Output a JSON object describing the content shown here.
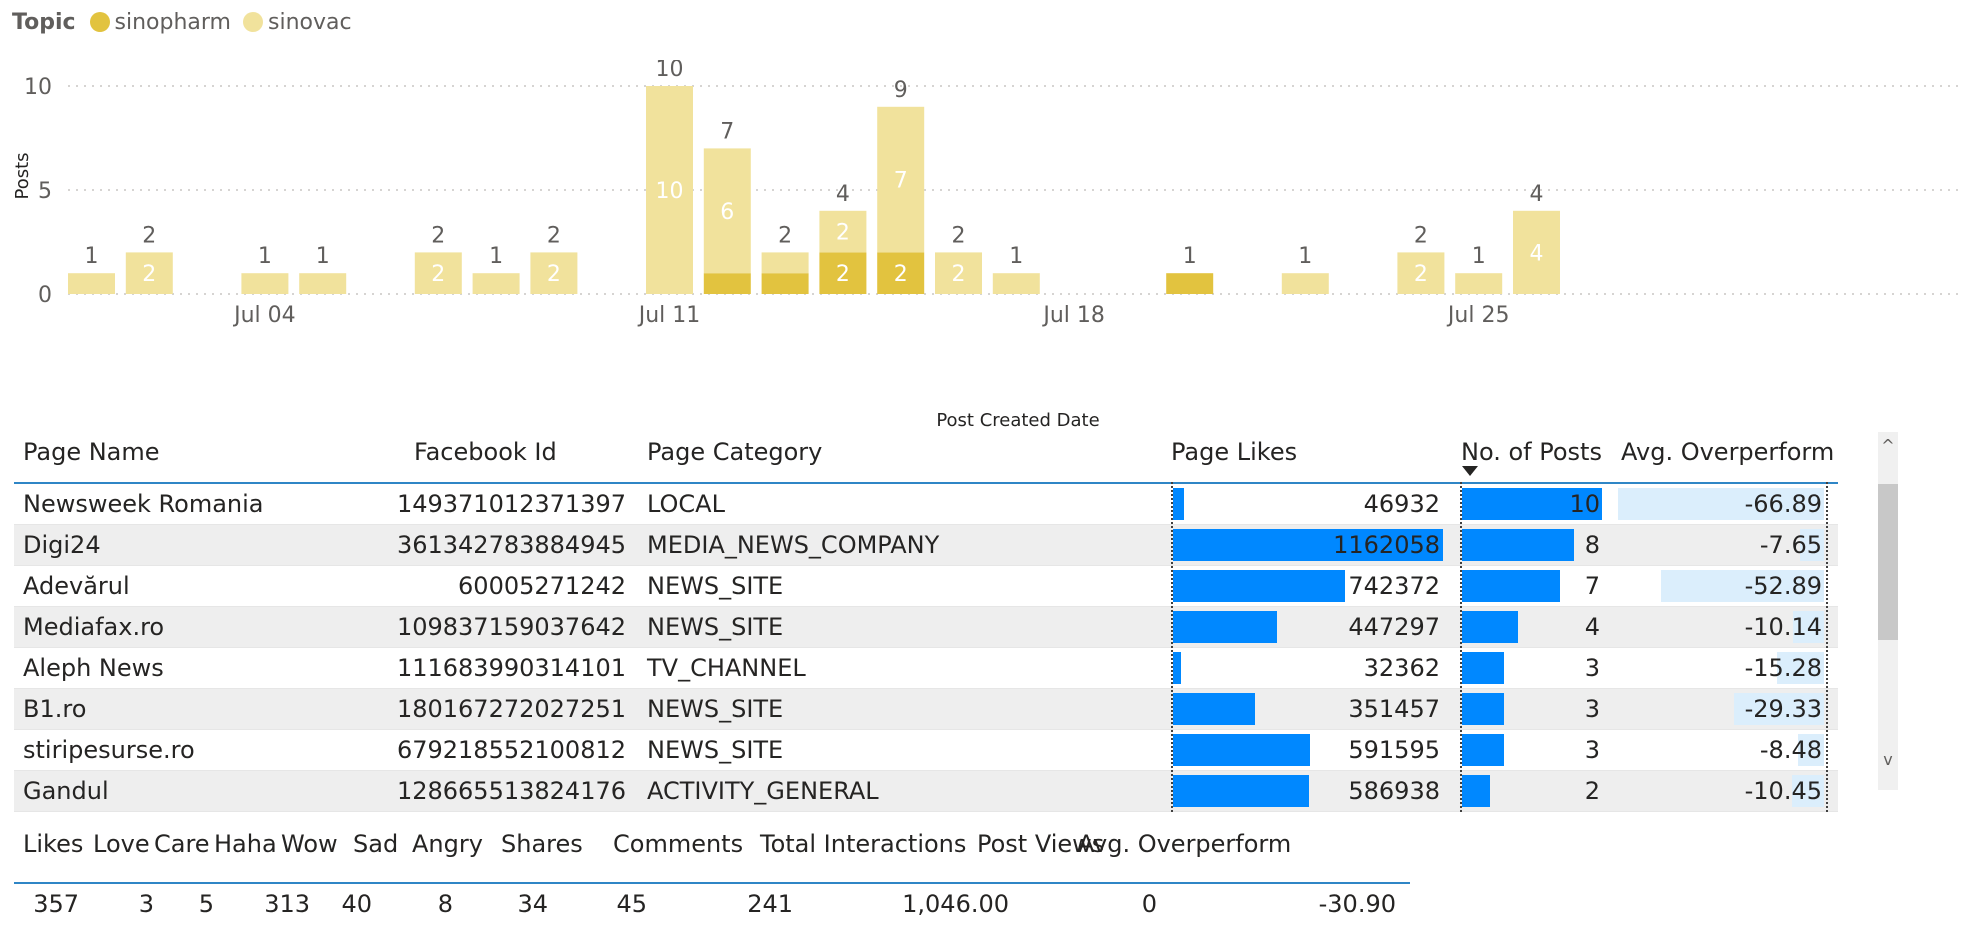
{
  "legend": {
    "title": "Topic",
    "items": [
      {
        "name": "sinopharm",
        "color": "#e2c33f"
      },
      {
        "name": "sinovac",
        "color": "#f1e29c"
      }
    ]
  },
  "chart_data": {
    "type": "bar",
    "stacked": true,
    "xlabel": "Post Created Date",
    "ylabel": "Posts",
    "ylim": [
      0,
      10
    ],
    "yticks": [
      0,
      5,
      10
    ],
    "xticks": [
      "Jul 04",
      "Jul 11",
      "Jul 18",
      "Jul 25"
    ],
    "grid": true,
    "categories": [
      "Jul 01",
      "Jul 02",
      "Jul 03",
      "Jul 04",
      "Jul 05",
      "Jul 06",
      "Jul 07",
      "Jul 08",
      "Jul 09",
      "Jul 10",
      "Jul 11",
      "Jul 12",
      "Jul 13",
      "Jul 14",
      "Jul 15",
      "Jul 16",
      "Jul 17",
      "Jul 18",
      "Jul 19",
      "Jul 20",
      "Jul 21",
      "Jul 22",
      "Jul 23",
      "Jul 24",
      "Jul 25",
      "Jul 26",
      "Jul 27",
      "Jul 28"
    ],
    "series": [
      {
        "name": "sinopharm",
        "color": "#e2c33f",
        "values": [
          0,
          0,
          0,
          0,
          0,
          0,
          0,
          0,
          0,
          0,
          0,
          1,
          1,
          2,
          2,
          0,
          0,
          0,
          0,
          1,
          0,
          0,
          0,
          0,
          0,
          0,
          0,
          0
        ]
      },
      {
        "name": "sinovac",
        "color": "#f1e29c",
        "values": [
          1,
          2,
          0,
          1,
          1,
          0,
          2,
          1,
          2,
          0,
          10,
          6,
          1,
          2,
          7,
          2,
          1,
          0,
          0,
          0,
          0,
          1,
          0,
          2,
          1,
          4,
          0,
          0
        ]
      }
    ],
    "totals": [
      1,
      2,
      0,
      1,
      1,
      0,
      2,
      1,
      2,
      0,
      10,
      7,
      2,
      4,
      9,
      2,
      1,
      0,
      0,
      1,
      0,
      1,
      0,
      2,
      1,
      4,
      0,
      0
    ]
  },
  "page_table": {
    "headers": [
      "Page Name",
      "Facebook Id",
      "Page Category",
      "Page Likes",
      "No. of Posts",
      "Avg. Overperform"
    ],
    "rows": [
      {
        "name": "Newsweek Romania",
        "fbid": "149371012371397",
        "category": "LOCAL",
        "likes": "46932",
        "likes_n": 46932,
        "posts": "10",
        "posts_n": 10,
        "overperform": "-66.89",
        "over_n": -66.89
      },
      {
        "name": "Digi24",
        "fbid": "361342783884945",
        "category": "MEDIA_NEWS_COMPANY",
        "likes": "1162058",
        "likes_n": 1162058,
        "posts": "8",
        "posts_n": 8,
        "overperform": "-7.65",
        "over_n": -7.65
      },
      {
        "name": "Adevărul",
        "fbid": "60005271242",
        "category": "NEWS_SITE",
        "likes": "742372",
        "likes_n": 742372,
        "posts": "7",
        "posts_n": 7,
        "overperform": "-52.89",
        "over_n": -52.89
      },
      {
        "name": "Mediafax.ro",
        "fbid": "109837159037642",
        "category": "NEWS_SITE",
        "likes": "447297",
        "likes_n": 447297,
        "posts": "4",
        "posts_n": 4,
        "overperform": "-10.14",
        "over_n": -10.14
      },
      {
        "name": "Aleph News",
        "fbid": "111683990314101",
        "category": "TV_CHANNEL",
        "likes": "32362",
        "likes_n": 32362,
        "posts": "3",
        "posts_n": 3,
        "overperform": "-15.28",
        "over_n": -15.28
      },
      {
        "name": "B1.ro",
        "fbid": "180167272027251",
        "category": "NEWS_SITE",
        "likes": "351457",
        "likes_n": 351457,
        "posts": "3",
        "posts_n": 3,
        "overperform": "-29.33",
        "over_n": -29.33
      },
      {
        "name": "stiripesurse.ro",
        "fbid": "679218552100812",
        "category": "NEWS_SITE",
        "likes": "591595",
        "likes_n": 591595,
        "posts": "3",
        "posts_n": 3,
        "overperform": "-8.48",
        "over_n": -8.48
      },
      {
        "name": "Gandul",
        "fbid": "128665513824176",
        "category": "ACTIVITY_GENERAL",
        "likes": "586938",
        "likes_n": 586938,
        "posts": "2",
        "posts_n": 2,
        "overperform": "-10.45",
        "over_n": -10.45
      }
    ],
    "scroll_up": "^",
    "scroll_down": "v"
  },
  "summary_table": {
    "headers": [
      "Likes",
      "Love",
      "Care",
      "Haha",
      "Wow",
      "Sad",
      "Angry",
      "Shares",
      "Comments",
      "Total Interactions",
      "Post Views",
      "Avg. Overperform"
    ],
    "values": [
      "357",
      "3",
      "5",
      "313",
      "40",
      "8",
      "34",
      "45",
      "241",
      "1,046.00",
      "0",
      "-30.90"
    ]
  }
}
